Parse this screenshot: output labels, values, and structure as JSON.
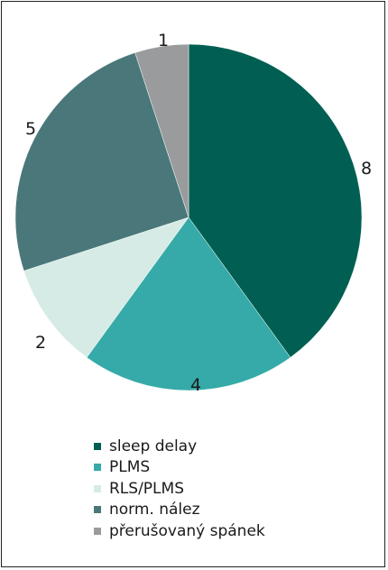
{
  "chart_data": {
    "type": "pie",
    "title": "",
    "start_angle_deg": 0,
    "direction": "clockwise",
    "legend_position": "bottom",
    "slices": [
      {
        "label": "sleep delay",
        "value": 8,
        "display": "8",
        "color": "#005f52"
      },
      {
        "label": "PLMS",
        "value": 4,
        "display": "4",
        "color": "#35aaa8"
      },
      {
        "label": "RLS/PLMS",
        "value": 2,
        "display": "2",
        "color": "#d6ebe6"
      },
      {
        "label": "norm. nález",
        "value": 5,
        "display": "5",
        "color": "#4a787a"
      },
      {
        "label": "přerušovaný spánek",
        "value": 1,
        "display": "1",
        "color": "#999b9c"
      }
    ]
  }
}
